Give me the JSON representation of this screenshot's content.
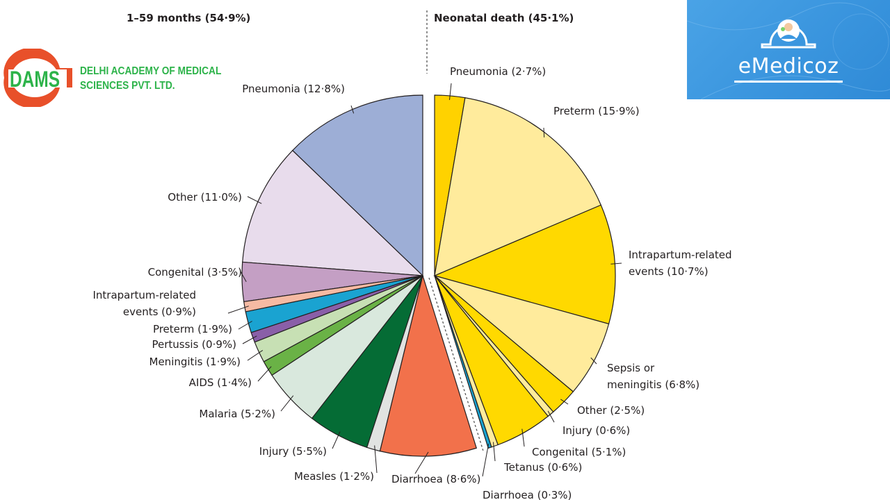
{
  "chart_data": {
    "type": "pie",
    "groups": [
      {
        "title": "1–59 months (54·9%)",
        "value": 54.9,
        "slices": [
          {
            "label": "Pneumonia (12·8%)",
            "value": 12.8,
            "color": "#9daed6"
          },
          {
            "label": "Other (11·0%)",
            "value": 11.0,
            "color": "#e8dcec"
          },
          {
            "label": "Congenital (3·5%)",
            "value": 3.5,
            "color": "#c49fc4"
          },
          {
            "label": "Intrapartum-related events (0·9%)",
            "label_lines": [
              "Intrapartum-related",
              "events (0·9%)"
            ],
            "value": 0.9,
            "color": "#f6baa3"
          },
          {
            "label": "Preterm (1·9%)",
            "value": 1.9,
            "color": "#1aa3d1"
          },
          {
            "label": "Pertussis (0·9%)",
            "value": 0.9,
            "color": "#8a5fa8"
          },
          {
            "label": "Meningitis (1·9%)",
            "value": 1.9,
            "color": "#c7e0b4"
          },
          {
            "label": "AIDS (1·4%)",
            "value": 1.4,
            "color": "#6ab246"
          },
          {
            "label": "Malaria (5·2%)",
            "value": 5.2,
            "color": "#d9e8dd"
          },
          {
            "label": "Injury (5·5%)",
            "value": 5.5,
            "color": "#056c35"
          },
          {
            "label": "Measles (1·2%)",
            "value": 1.2,
            "color": "#e1e3e1"
          },
          {
            "label": "Diarrhoea (8·6%)",
            "value": 8.6,
            "color": "#f2714b"
          }
        ]
      },
      {
        "title": "Neonatal death (45·1%)",
        "value": 45.1,
        "slices": [
          {
            "label": "Pneumonia (2·7%)",
            "value": 2.7,
            "color": "#ffd200"
          },
          {
            "label": "Preterm (15·9%)",
            "value": 15.9,
            "color": "#ffeb9c"
          },
          {
            "label": "Intrapartum-related events (10·7%)",
            "label_lines": [
              "Intrapartum-related",
              "events (10·7%)"
            ],
            "value": 10.7,
            "color": "#ffd900"
          },
          {
            "label": "Sepsis or meningitis (6·8%)",
            "label_lines": [
              "Sepsis or",
              "meningitis (6·8%)"
            ],
            "value": 6.8,
            "color": "#ffeb9c"
          },
          {
            "label": "Other (2·5%)",
            "value": 2.5,
            "color": "#ffd900"
          },
          {
            "label": "Injury (0·6%)",
            "value": 0.6,
            "color": "#ffeb9c"
          },
          {
            "label": "Congenital (5·1%)",
            "value": 5.1,
            "color": "#ffd900"
          },
          {
            "label": "Tetanus (0·6%)",
            "value": 0.6,
            "color": "#ffeb9c"
          },
          {
            "label": "Diarrhoea (0·3%)",
            "value": 0.3,
            "color": "#1aa3d1"
          }
        ]
      }
    ]
  },
  "logos": {
    "dams": {
      "mark": "DAMS",
      "lines": [
        "DELHI ACADEMY OF MEDICAL",
        "SCIENCES PVT. LTD."
      ],
      "color": "#2db34a",
      "ring_color": "#e8502a"
    },
    "emedicoz": {
      "brand": "eMedicoz",
      "icon": "doctor-scale-icon",
      "bg_color": "#3d98e0"
    }
  }
}
